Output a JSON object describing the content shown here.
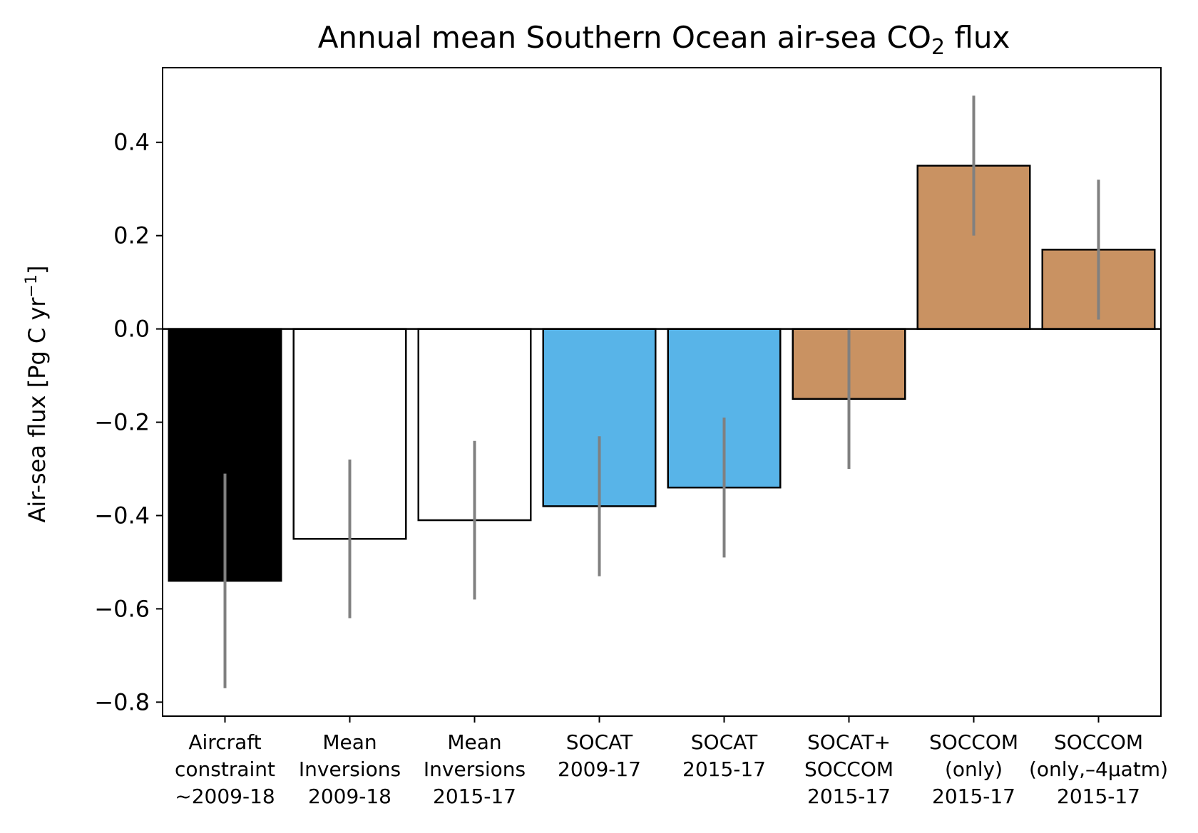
{
  "chart_data": {
    "type": "bar",
    "title": "Annual mean Southern Ocean air-sea CO",
    "title_subscript": "2",
    "title_suffix": " flux",
    "ylabel": "Air-sea flux [Pg C yr",
    "ylabel_superscript": "−1",
    "ylabel_suffix": "]",
    "ylim": [
      -0.83,
      0.56
    ],
    "yticks": [
      -0.8,
      -0.6,
      -0.4,
      -0.2,
      0.0,
      0.2,
      0.4
    ],
    "ytick_labels": [
      "−0.8",
      "−0.6",
      "−0.4",
      "−0.2",
      "0.0",
      "0.2",
      "0.4"
    ],
    "categories": [
      [
        "Aircraft",
        "constraint",
        "~2009-18"
      ],
      [
        "Mean",
        "Inversions",
        "2009-18"
      ],
      [
        "Mean",
        "Inversions",
        "2015-17"
      ],
      [
        "SOCAT",
        "2009-17"
      ],
      [
        "SOCAT",
        "2015-17"
      ],
      [
        "SOCAT+",
        "SOCCOM",
        "2015-17"
      ],
      [
        "SOCCOM",
        "(only)",
        "2015-17"
      ],
      [
        "SOCCOM",
        "(only,–4µatm)",
        "2015-17"
      ]
    ],
    "values": [
      -0.54,
      -0.45,
      -0.41,
      -0.38,
      -0.34,
      -0.15,
      0.35,
      0.17
    ],
    "error_low": [
      -0.77,
      -0.62,
      -0.58,
      -0.53,
      -0.49,
      -0.3,
      0.2,
      0.02
    ],
    "error_high": [
      -0.31,
      -0.28,
      -0.24,
      -0.23,
      -0.19,
      0.0,
      0.5,
      0.32
    ],
    "bar_colors": [
      "#000000",
      "#ffffff",
      "#ffffff",
      "#58b4e8",
      "#58b4e8",
      "#c99262",
      "#c99262",
      "#c99262"
    ],
    "edge_color": "#000000",
    "error_color": "#808080",
    "zero_line": true,
    "grid": false,
    "legend": "none"
  }
}
